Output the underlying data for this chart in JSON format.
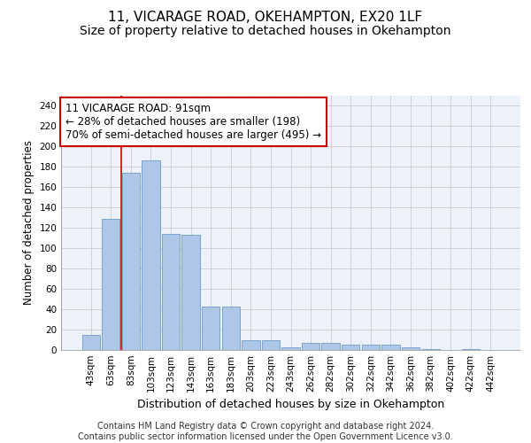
{
  "title_line1": "11, VICARAGE ROAD, OKEHAMPTON, EX20 1LF",
  "title_line2": "Size of property relative to detached houses in Okehampton",
  "xlabel": "Distribution of detached houses by size in Okehampton",
  "ylabel": "Number of detached properties",
  "categories": [
    "43sqm",
    "63sqm",
    "83sqm",
    "103sqm",
    "123sqm",
    "143sqm",
    "163sqm",
    "183sqm",
    "203sqm",
    "223sqm",
    "243sqm",
    "262sqm",
    "282sqm",
    "302sqm",
    "322sqm",
    "342sqm",
    "362sqm",
    "382sqm",
    "402sqm",
    "422sqm",
    "442sqm"
  ],
  "values": [
    15,
    129,
    174,
    186,
    114,
    113,
    43,
    43,
    10,
    10,
    3,
    7,
    7,
    5,
    5,
    5,
    3,
    1,
    0,
    1,
    0
  ],
  "bar_color": "#aec6e8",
  "bar_edge_color": "#5a8fc2",
  "vline_x": 1.5,
  "vline_color": "#cc0000",
  "annotation_text": "11 VICARAGE ROAD: 91sqm\n← 28% of detached houses are smaller (198)\n70% of semi-detached houses are larger (495) →",
  "annotation_box_color": "#ffffff",
  "annotation_box_edge": "#cc0000",
  "footer_text": "Contains HM Land Registry data © Crown copyright and database right 2024.\nContains public sector information licensed under the Open Government Licence v3.0.",
  "ylim": [
    0,
    250
  ],
  "yticks": [
    0,
    20,
    40,
    60,
    80,
    100,
    120,
    140,
    160,
    180,
    200,
    220,
    240
  ],
  "grid_color": "#c8cdd8",
  "bg_color": "#edf1f9",
  "fig_bg_color": "#ffffff",
  "title1_fontsize": 11,
  "title2_fontsize": 10,
  "xlabel_fontsize": 9,
  "ylabel_fontsize": 8.5,
  "tick_fontsize": 7.5,
  "annotation_fontsize": 8.5,
  "footer_fontsize": 7
}
